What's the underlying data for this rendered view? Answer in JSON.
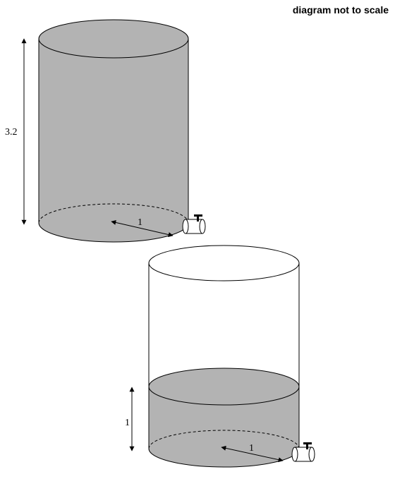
{
  "note": "diagram not to scale",
  "tank_top": {
    "height_label": "3.2",
    "radius_label": "1",
    "fill_color": "#b3b3b3",
    "water_level_fraction": 1.0
  },
  "tank_bottom": {
    "height_label": "1",
    "radius_label": "1",
    "fill_color": "#b3b3b3",
    "empty_color": "#ffffff"
  },
  "icons": [
    "tap-icon",
    "tap-icon"
  ]
}
